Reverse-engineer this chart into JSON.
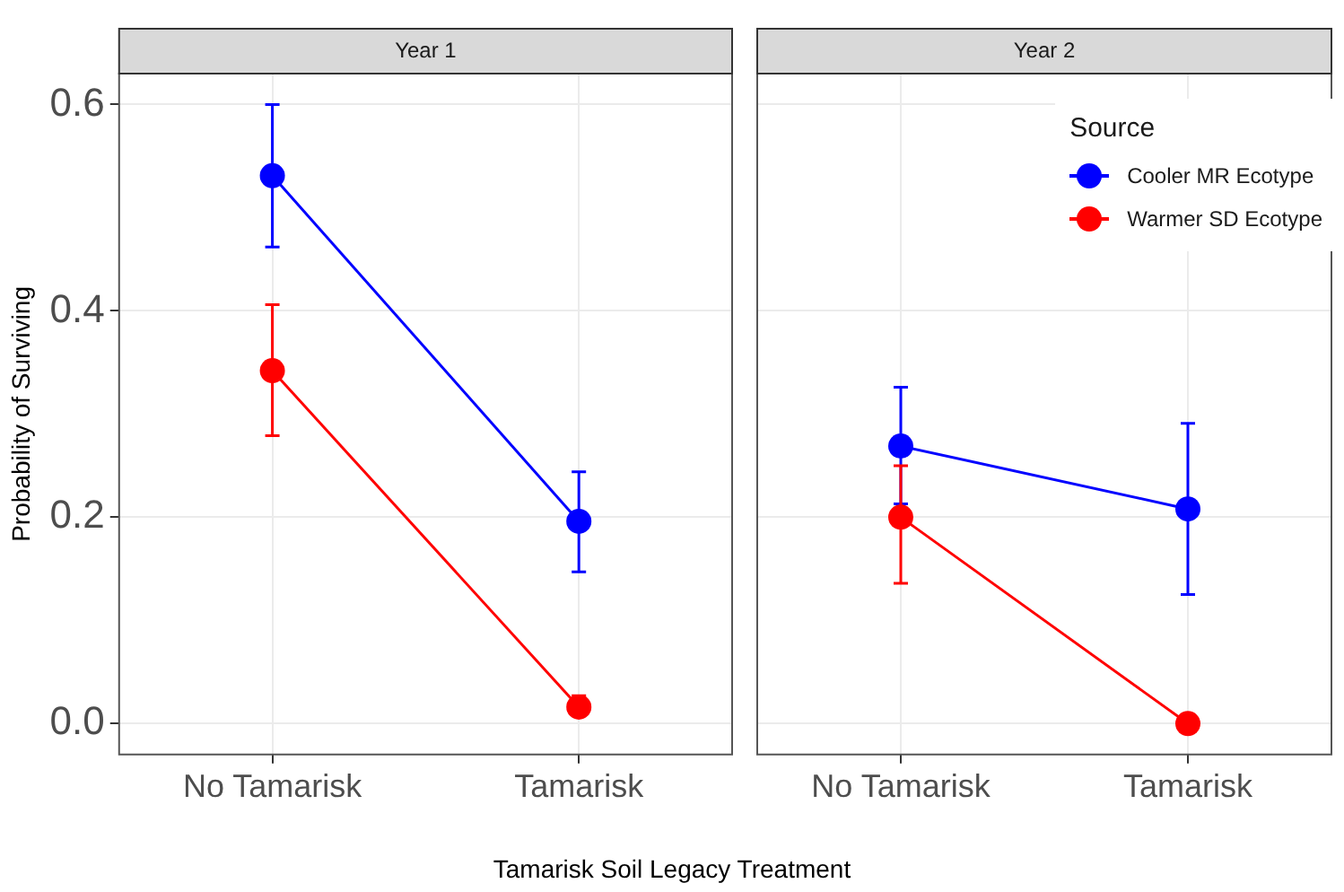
{
  "chart_data": [
    {
      "type": "line",
      "title": "Year 1",
      "ylabel": "Probability of Surviving",
      "xlabel": "Tamarisk Soil Legacy Treatment",
      "categories": [
        "No Tamarisk",
        "Tamarisk"
      ],
      "ylim": [
        -0.03,
        0.63
      ],
      "yticks": [
        {
          "value": 0,
          "label": "0.0"
        },
        {
          "value": 0.2,
          "label": "0.2"
        },
        {
          "value": 0.4,
          "label": "0.4"
        },
        {
          "value": 0.6,
          "label": "0.6"
        }
      ],
      "grid": true,
      "marker": "circle",
      "legend": false,
      "series": [
        {
          "color": "#0000ff",
          "values": [
            0.531,
            0.196
          ],
          "errors": [
            [
              0.462,
              0.6
            ],
            [
              0.147,
              0.244
            ]
          ]
        },
        {
          "color": "#ff0000",
          "values": [
            0.342,
            0.016
          ],
          "errors": [
            [
              0.279,
              0.406
            ],
            [
              0.008,
              0.027
            ]
          ]
        }
      ]
    },
    {
      "type": "line",
      "title": "Year 2",
      "categories": [
        "No Tamarisk",
        "Tamarisk"
      ],
      "ylim": [
        -0.03,
        0.63
      ],
      "yticks": [
        0,
        0.2,
        0.4,
        0.6
      ],
      "tick_labels": "x",
      "grid": true,
      "marker": "circle",
      "legend": "top right",
      "legend_title": "Source",
      "series": [
        {
          "name": "Cooler MR Ecotype",
          "color": "#0000ff",
          "values": [
            0.269,
            0.208
          ],
          "errors": [
            [
              0.213,
              0.326
            ],
            [
              0.125,
              0.291
            ]
          ]
        },
        {
          "name": "Warmer SD Ecotype",
          "color": "#ff0000",
          "values": [
            0.2,
            0
          ],
          "errors": [
            [
              0.136,
              0.25
            ],
            null
          ]
        }
      ]
    }
  ]
}
